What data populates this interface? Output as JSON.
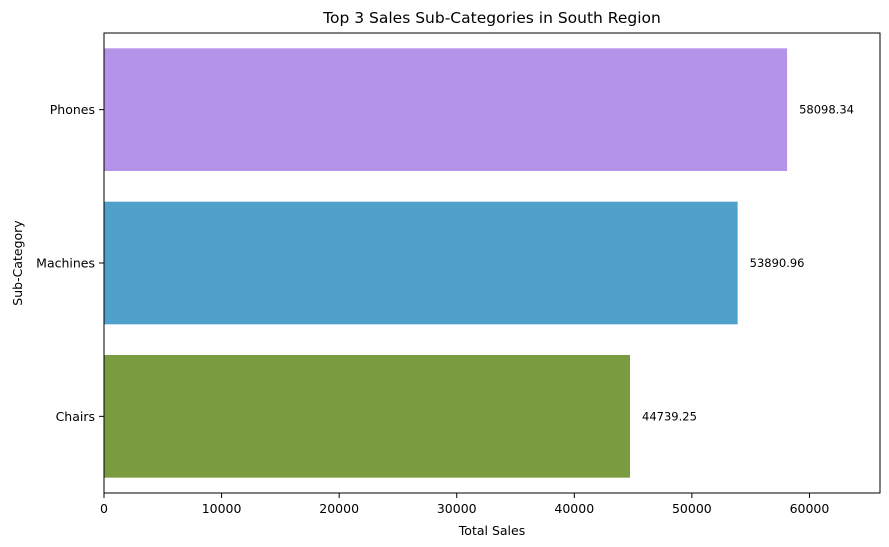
{
  "chart_data": {
    "type": "bar",
    "orientation": "horizontal",
    "title": "Top 3 Sales Sub-Categories in South Region",
    "xlabel": "Total Sales",
    "ylabel": "Sub-Category",
    "categories": [
      "Phones",
      "Machines",
      "Chairs"
    ],
    "values": [
      58098.34,
      53890.96,
      44739.25
    ],
    "value_labels": [
      "58098.34",
      "53890.96",
      "44739.25"
    ],
    "colors": [
      "#b394e8",
      "#4fa0cb",
      "#7a9c3f"
    ],
    "xlim": [
      0,
      66000
    ],
    "xticks": [
      0,
      10000,
      20000,
      30000,
      40000,
      50000,
      60000
    ],
    "xtick_labels": [
      "0",
      "10000",
      "20000",
      "30000",
      "40000",
      "50000",
      "60000"
    ],
    "grid": false,
    "legend": "none"
  }
}
